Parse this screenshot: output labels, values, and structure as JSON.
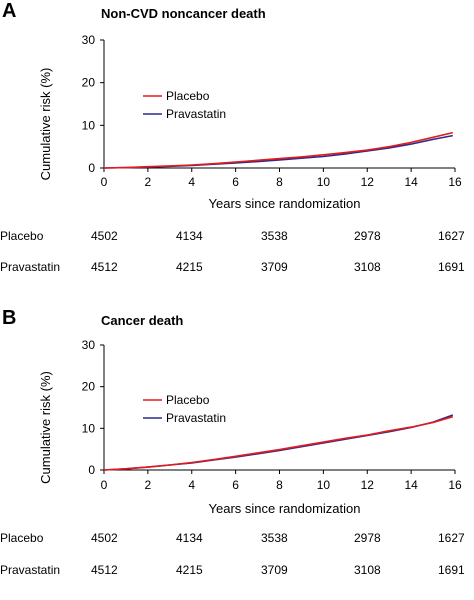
{
  "chart_data": [
    {
      "type": "line",
      "panel_letter": "A",
      "title": "Non-CVD noncancer death",
      "xlabel": "Years since randomization",
      "ylabel": "Cumulative risk (%)",
      "xlim": [
        0,
        16
      ],
      "ylim": [
        0,
        30
      ],
      "x_ticks": [
        "0",
        "2",
        "4",
        "6",
        "8",
        "10",
        "12",
        "14",
        "16"
      ],
      "y_ticks": [
        "0",
        "10",
        "20",
        "30"
      ],
      "legend_position": "center-left",
      "grid": false,
      "x": [
        0,
        1,
        2,
        3,
        4,
        5,
        6,
        7,
        8,
        9,
        10,
        11,
        12,
        13,
        14,
        15,
        15.9
      ],
      "series": [
        {
          "name": "Placebo",
          "color": "#e41a1c",
          "values": [
            0,
            0.1,
            0.3,
            0.5,
            0.7,
            1.0,
            1.4,
            1.8,
            2.2,
            2.6,
            3.1,
            3.6,
            4.2,
            5.0,
            6.0,
            7.2,
            8.3
          ]
        },
        {
          "name": "Pravastatin",
          "color": "#2b2b8c",
          "values": [
            0,
            0.1,
            0.2,
            0.4,
            0.6,
            0.9,
            1.2,
            1.5,
            1.9,
            2.3,
            2.7,
            3.3,
            4.0,
            4.7,
            5.6,
            6.7,
            7.6
          ]
        }
      ],
      "risk_table": {
        "columns": [
          "4502",
          "4134",
          "3538",
          "2978",
          "1627"
        ],
        "rows": [
          {
            "label": "Placebo",
            "values": [
              "4502",
              "4134",
              "3538",
              "2978",
              "1627"
            ]
          },
          {
            "label": "Pravastatin",
            "values": [
              "4512",
              "4215",
              "3709",
              "3108",
              "1691"
            ]
          }
        ]
      }
    },
    {
      "type": "line",
      "panel_letter": "B",
      "title": "Cancer death",
      "xlabel": "Years since randomization",
      "ylabel": "Cumulative risk (%)",
      "xlim": [
        0,
        16
      ],
      "ylim": [
        0,
        30
      ],
      "x_ticks": [
        "0",
        "2",
        "4",
        "6",
        "8",
        "10",
        "12",
        "14",
        "16"
      ],
      "y_ticks": [
        "0",
        "10",
        "20",
        "30"
      ],
      "legend_position": "center-left",
      "grid": false,
      "x": [
        0,
        1,
        2,
        3,
        4,
        5,
        6,
        7,
        8,
        9,
        10,
        11,
        12,
        13,
        14,
        15,
        15.9
      ],
      "series": [
        {
          "name": "Placebo",
          "color": "#e41a1c",
          "values": [
            0,
            0.3,
            0.7,
            1.2,
            1.8,
            2.5,
            3.3,
            4.1,
            4.9,
            5.8,
            6.7,
            7.6,
            8.4,
            9.4,
            10.3,
            11.4,
            12.8
          ]
        },
        {
          "name": "Pravastatin",
          "color": "#2b2b8c",
          "values": [
            0,
            0.3,
            0.7,
            1.2,
            1.7,
            2.4,
            3.1,
            3.9,
            4.7,
            5.6,
            6.5,
            7.4,
            8.3,
            9.2,
            10.2,
            11.5,
            13.2
          ]
        }
      ],
      "risk_table": {
        "rows": [
          {
            "label": "Placebo",
            "values": [
              "4502",
              "4134",
              "3538",
              "2978",
              "1627"
            ]
          },
          {
            "label": "Pravastatin",
            "values": [
              "4512",
              "4215",
              "3709",
              "3108",
              "1691"
            ]
          }
        ]
      }
    }
  ]
}
